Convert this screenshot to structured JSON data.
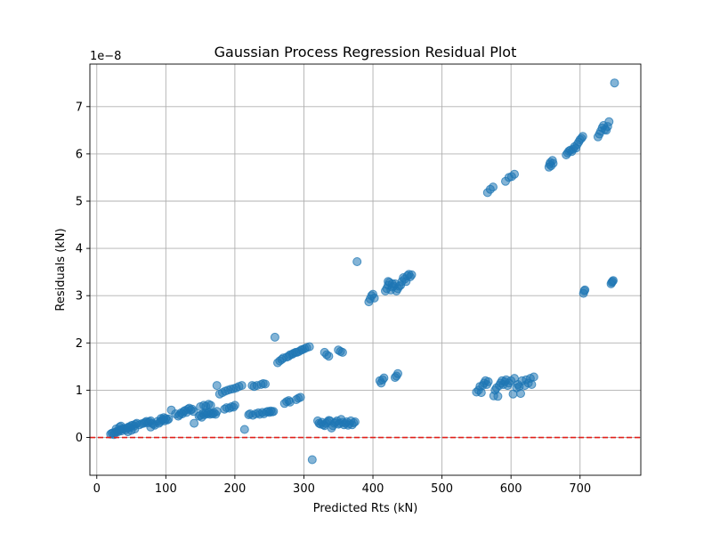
{
  "chart_data": {
    "type": "scatter",
    "title": "Gaussian Process Regression Residual Plot",
    "xlabel": "Predicted Rts (kN)",
    "ylabel": "Residuals (kN)",
    "offset_label": "1e−8",
    "y_scale_factor": 1e-08,
    "xlim": [
      -10,
      788
    ],
    "ylim": [
      -0.8,
      7.9
    ],
    "x_ticks": [
      0,
      100,
      200,
      300,
      400,
      500,
      600,
      700
    ],
    "y_ticks": [
      0,
      1,
      2,
      3,
      4,
      5,
      6,
      7
    ],
    "grid": true,
    "reference_line": {
      "y": 0,
      "color": "#e0201a",
      "style": "dashed"
    },
    "series": [
      {
        "color": "#1f77b4",
        "points": [
          [
            20,
            0.07
          ],
          [
            22,
            0.09
          ],
          [
            24,
            0.1
          ],
          [
            25,
            0.06
          ],
          [
            27,
            0.11
          ],
          [
            29,
            0.13
          ],
          [
            31,
            0.12
          ],
          [
            33,
            0.15
          ],
          [
            35,
            0.17
          ],
          [
            36,
            0.14
          ],
          [
            38,
            0.18
          ],
          [
            40,
            0.19
          ],
          [
            42,
            0.16
          ],
          [
            44,
            0.2
          ],
          [
            46,
            0.22
          ],
          [
            48,
            0.21
          ],
          [
            50,
            0.25
          ],
          [
            52,
            0.26
          ],
          [
            54,
            0.24
          ],
          [
            56,
            0.28
          ],
          [
            58,
            0.3
          ],
          [
            33,
            0.22
          ],
          [
            35,
            0.24
          ],
          [
            28,
            0.18
          ],
          [
            45,
            0.12
          ],
          [
            55,
            0.18
          ],
          [
            50,
            0.15
          ],
          [
            62,
            0.27
          ],
          [
            65,
            0.29
          ],
          [
            68,
            0.3
          ],
          [
            70,
            0.32
          ],
          [
            72,
            0.34
          ],
          [
            74,
            0.31
          ],
          [
            76,
            0.33
          ],
          [
            78,
            0.35
          ],
          [
            80,
            0.3
          ],
          [
            82,
            0.28
          ],
          [
            84,
            0.26
          ],
          [
            78,
            0.22
          ],
          [
            88,
            0.34
          ],
          [
            90,
            0.3
          ],
          [
            92,
            0.33
          ],
          [
            94,
            0.36
          ],
          [
            96,
            0.38
          ],
          [
            98,
            0.35
          ],
          [
            100,
            0.4
          ],
          [
            102,
            0.37
          ],
          [
            104,
            0.39
          ],
          [
            93,
            0.4
          ],
          [
            97,
            0.42
          ],
          [
            108,
            0.58
          ],
          [
            114,
            0.5
          ],
          [
            118,
            0.45
          ],
          [
            120,
            0.48
          ],
          [
            122,
            0.52
          ],
          [
            124,
            0.5
          ],
          [
            126,
            0.55
          ],
          [
            128,
            0.57
          ],
          [
            130,
            0.53
          ],
          [
            132,
            0.6
          ],
          [
            134,
            0.62
          ],
          [
            136,
            0.58
          ],
          [
            138,
            0.6
          ],
          [
            140,
            0.55
          ],
          [
            141,
            0.3
          ],
          [
            148,
            0.45
          ],
          [
            150,
            0.47
          ],
          [
            152,
            0.43
          ],
          [
            154,
            0.5
          ],
          [
            156,
            0.48
          ],
          [
            158,
            0.52
          ],
          [
            160,
            0.5
          ],
          [
            162,
            0.53
          ],
          [
            164,
            0.49
          ],
          [
            166,
            0.51
          ],
          [
            168,
            0.5
          ],
          [
            170,
            0.52
          ],
          [
            172,
            0.49
          ],
          [
            174,
            0.55
          ],
          [
            150,
            0.65
          ],
          [
            155,
            0.68
          ],
          [
            158,
            0.66
          ],
          [
            162,
            0.7
          ],
          [
            165,
            0.68
          ],
          [
            185,
            0.6
          ],
          [
            188,
            0.63
          ],
          [
            192,
            0.62
          ],
          [
            195,
            0.65
          ],
          [
            198,
            0.64
          ],
          [
            200,
            0.68
          ],
          [
            174,
            1.1
          ],
          [
            178,
            0.92
          ],
          [
            182,
            0.95
          ],
          [
            186,
            0.98
          ],
          [
            190,
            1.0
          ],
          [
            194,
            1.02
          ],
          [
            198,
            1.03
          ],
          [
            202,
            1.05
          ],
          [
            206,
            1.08
          ],
          [
            210,
            1.1
          ],
          [
            225,
            1.1
          ],
          [
            228,
            1.08
          ],
          [
            232,
            1.1
          ],
          [
            238,
            1.12
          ],
          [
            241,
            1.14
          ],
          [
            244,
            1.13
          ],
          [
            214,
            0.17
          ],
          [
            220,
            0.48
          ],
          [
            222,
            0.5
          ],
          [
            226,
            0.47
          ],
          [
            230,
            0.5
          ],
          [
            234,
            0.52
          ],
          [
            236,
            0.49
          ],
          [
            240,
            0.53
          ],
          [
            242,
            0.5
          ],
          [
            246,
            0.54
          ],
          [
            248,
            0.55
          ],
          [
            250,
            0.53
          ],
          [
            252,
            0.56
          ],
          [
            254,
            0.54
          ],
          [
            256,
            0.55
          ],
          [
            272,
            0.72
          ],
          [
            275,
            0.76
          ],
          [
            278,
            0.78
          ],
          [
            280,
            0.75
          ],
          [
            289,
            0.8
          ],
          [
            292,
            0.83
          ],
          [
            295,
            0.85
          ],
          [
            258,
            2.12
          ],
          [
            262,
            1.58
          ],
          [
            265,
            1.62
          ],
          [
            268,
            1.65
          ],
          [
            270,
            1.68
          ],
          [
            275,
            1.7
          ],
          [
            278,
            1.72
          ],
          [
            280,
            1.75
          ],
          [
            283,
            1.76
          ],
          [
            285,
            1.78
          ],
          [
            288,
            1.8
          ],
          [
            290,
            1.8
          ],
          [
            293,
            1.82
          ],
          [
            296,
            1.85
          ],
          [
            298,
            1.86
          ],
          [
            301,
            1.88
          ],
          [
            304,
            1.9
          ],
          [
            308,
            1.92
          ],
          [
            312,
            -0.47
          ],
          [
            320,
            0.35
          ],
          [
            322,
            0.3
          ],
          [
            324,
            0.28
          ],
          [
            326,
            0.32
          ],
          [
            328,
            0.27
          ],
          [
            330,
            0.25
          ],
          [
            332,
            0.3
          ],
          [
            334,
            0.33
          ],
          [
            336,
            0.36
          ],
          [
            338,
            0.35
          ],
          [
            340,
            0.2
          ],
          [
            342,
            0.25
          ],
          [
            344,
            0.3
          ],
          [
            346,
            0.32
          ],
          [
            348,
            0.35
          ],
          [
            350,
            0.28
          ],
          [
            352,
            0.3
          ],
          [
            354,
            0.38
          ],
          [
            356,
            0.32
          ],
          [
            358,
            0.27
          ],
          [
            360,
            0.3
          ],
          [
            362,
            0.33
          ],
          [
            364,
            0.26
          ],
          [
            366,
            0.29
          ],
          [
            368,
            0.35
          ],
          [
            370,
            0.27
          ],
          [
            372,
            0.31
          ],
          [
            374,
            0.33
          ],
          [
            330,
            1.8
          ],
          [
            333,
            1.75
          ],
          [
            336,
            1.72
          ],
          [
            350,
            1.85
          ],
          [
            353,
            1.82
          ],
          [
            356,
            1.8
          ],
          [
            377,
            3.72
          ],
          [
            394,
            2.87
          ],
          [
            396,
            2.93
          ],
          [
            398,
            3.0
          ],
          [
            400,
            3.03
          ],
          [
            402,
            2.95
          ],
          [
            410,
            1.2
          ],
          [
            412,
            1.15
          ],
          [
            414,
            1.22
          ],
          [
            416,
            1.26
          ],
          [
            432,
            1.27
          ],
          [
            434,
            1.3
          ],
          [
            436,
            1.35
          ],
          [
            418,
            3.1
          ],
          [
            420,
            3.15
          ],
          [
            422,
            3.22
          ],
          [
            424,
            3.28
          ],
          [
            426,
            3.12
          ],
          [
            428,
            3.18
          ],
          [
            430,
            3.2
          ],
          [
            432,
            3.25
          ],
          [
            434,
            3.1
          ],
          [
            436,
            3.15
          ],
          [
            438,
            3.2
          ],
          [
            440,
            3.22
          ],
          [
            442,
            3.3
          ],
          [
            444,
            3.38
          ],
          [
            446,
            3.35
          ],
          [
            448,
            3.3
          ],
          [
            450,
            3.42
          ],
          [
            452,
            3.45
          ],
          [
            454,
            3.4
          ],
          [
            456,
            3.44
          ],
          [
            422,
            3.3
          ],
          [
            428,
            3.25
          ],
          [
            550,
            0.96
          ],
          [
            553,
            1.0
          ],
          [
            555,
            1.08
          ],
          [
            557,
            0.95
          ],
          [
            559,
            1.1
          ],
          [
            561,
            1.15
          ],
          [
            563,
            1.2
          ],
          [
            565,
            1.12
          ],
          [
            567,
            1.18
          ],
          [
            575,
            0.88
          ],
          [
            577,
            1.0
          ],
          [
            579,
            1.05
          ],
          [
            581,
            0.87
          ],
          [
            583,
            1.1
          ],
          [
            585,
            1.15
          ],
          [
            587,
            1.2
          ],
          [
            589,
            1.12
          ],
          [
            591,
            1.18
          ],
          [
            593,
            1.22
          ],
          [
            595,
            1.1
          ],
          [
            597,
            1.15
          ],
          [
            600,
            1.2
          ],
          [
            603,
            0.92
          ],
          [
            605,
            1.25
          ],
          [
            608,
            1.05
          ],
          [
            610,
            1.12
          ],
          [
            612,
            1.08
          ],
          [
            614,
            0.93
          ],
          [
            616,
            1.2
          ],
          [
            620,
            1.1
          ],
          [
            622,
            1.22
          ],
          [
            625,
            1.15
          ],
          [
            628,
            1.25
          ],
          [
            630,
            1.12
          ],
          [
            633,
            1.28
          ],
          [
            566,
            5.18
          ],
          [
            570,
            5.25
          ],
          [
            574,
            5.3
          ],
          [
            592,
            5.42
          ],
          [
            597,
            5.5
          ],
          [
            601,
            5.52
          ],
          [
            605,
            5.57
          ],
          [
            655,
            5.72
          ],
          [
            656,
            5.78
          ],
          [
            657,
            5.82
          ],
          [
            658,
            5.75
          ],
          [
            660,
            5.86
          ],
          [
            661,
            5.8
          ],
          [
            680,
            5.98
          ],
          [
            682,
            6.02
          ],
          [
            684,
            6.06
          ],
          [
            686,
            6.08
          ],
          [
            688,
            6.05
          ],
          [
            690,
            6.1
          ],
          [
            692,
            6.15
          ],
          [
            694,
            6.12
          ],
          [
            696,
            6.2
          ],
          [
            698,
            6.25
          ],
          [
            700,
            6.3
          ],
          [
            702,
            6.33
          ],
          [
            704,
            6.37
          ],
          [
            705,
            3.05
          ],
          [
            706,
            3.1
          ],
          [
            707,
            3.12
          ],
          [
            726,
            6.36
          ],
          [
            728,
            6.42
          ],
          [
            730,
            6.48
          ],
          [
            732,
            6.55
          ],
          [
            734,
            6.6
          ],
          [
            736,
            6.52
          ],
          [
            738,
            6.5
          ],
          [
            740,
            6.58
          ],
          [
            742,
            6.68
          ],
          [
            745,
            3.25
          ],
          [
            746,
            3.28
          ],
          [
            747,
            3.3
          ],
          [
            748,
            3.32
          ],
          [
            750,
            7.5
          ]
        ]
      }
    ]
  }
}
